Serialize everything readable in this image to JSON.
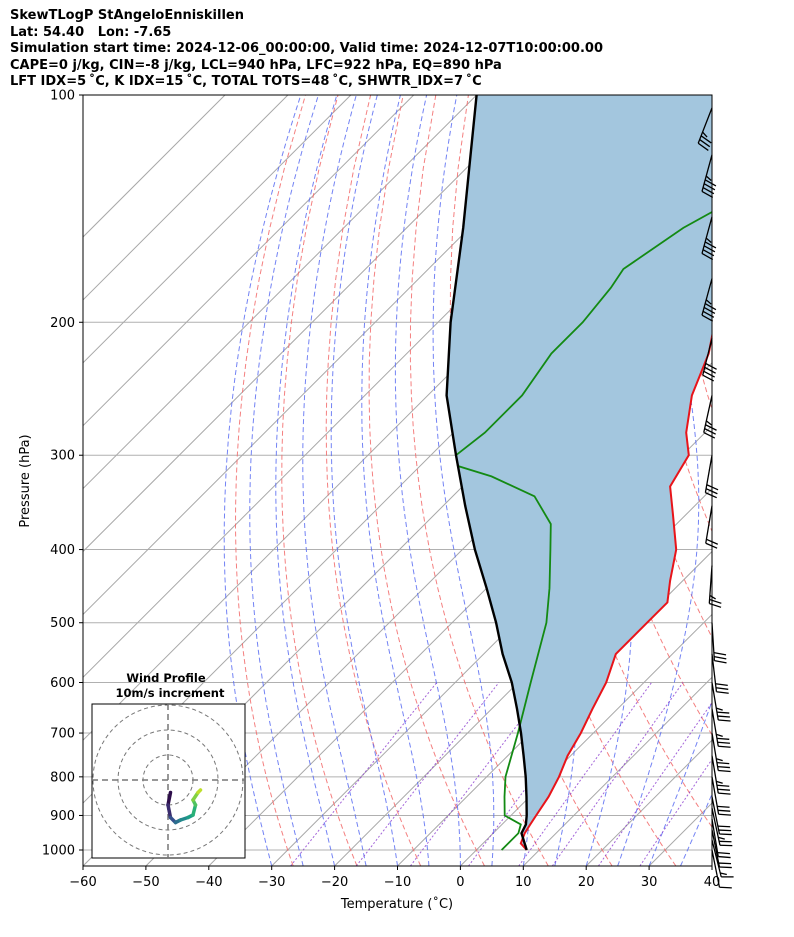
{
  "header": {
    "line1": "SkewTLogP StAngeloEnniskillen",
    "line2": "Lat: 54.40   Lon: -7.65",
    "line3": "Simulation start time: 2024-12-06_00:00:00, Valid time: 2024-12-07T10:00:00.00",
    "line4": "CAPE=0 j/kg, CIN=-8 j/kg, LCL=940 hPa, LFC=922 hPa, EQ=890 hPa",
    "line5": "LFT IDX=5 ˚C, K IDX=15 ˚C, TOTAL TOTS=48 ˚C, SHWTR_IDX=7 ˚C"
  },
  "chart_data": {
    "type": "line",
    "chart_kind": "skew-T log-P",
    "xlabel": "Temperature (˚C)",
    "ylabel": "Pressure (hPa)",
    "xlim": [
      -60,
      40
    ],
    "ylim": [
      1050,
      100
    ],
    "y_scale": "log",
    "x_ticks": [
      "−60",
      "−50",
      "−40",
      "−30",
      "−20",
      "−10",
      "0",
      "10",
      "20",
      "30",
      "40"
    ],
    "y_ticks": [
      "100",
      "200",
      "300",
      "400",
      "500",
      "600",
      "700",
      "800",
      "900",
      "1000"
    ],
    "grid": true,
    "colors": {
      "temperature": "#e8141a",
      "dewpoint": "#138a13",
      "parcel": "#000000",
      "cape_fill": "#a3c6de",
      "dry_adiabats": "#f26a6a",
      "moist_adiabats": "#5a6df2",
      "mixing_ratio": "#8c3fcf"
    },
    "series": [
      {
        "key": "temperature",
        "points": [
          [
            1000,
            8
          ],
          [
            980,
            6
          ],
          [
            950,
            5
          ],
          [
            925,
            4.5
          ],
          [
            900,
            4
          ],
          [
            850,
            3
          ],
          [
            800,
            1.5
          ],
          [
            750,
            -0.5
          ],
          [
            700,
            -2
          ],
          [
            650,
            -4
          ],
          [
            600,
            -6
          ],
          [
            550,
            -9
          ],
          [
            500,
            -9
          ],
          [
            470,
            -9
          ],
          [
            440,
            -12
          ],
          [
            400,
            -16
          ],
          [
            360,
            -22
          ],
          [
            330,
            -27
          ],
          [
            300,
            -29
          ],
          [
            280,
            -33
          ],
          [
            250,
            -38
          ],
          [
            220,
            -42
          ],
          [
            200,
            -46
          ],
          [
            180,
            -51
          ],
          [
            160,
            -54
          ],
          [
            140,
            -57
          ],
          [
            120,
            -61
          ],
          [
            100,
            -66
          ]
        ]
      },
      {
        "key": "dewpoint",
        "points": [
          [
            1000,
            4
          ],
          [
            950,
            4
          ],
          [
            925,
            3
          ],
          [
            900,
            -1
          ],
          [
            850,
            -4
          ],
          [
            800,
            -7
          ],
          [
            700,
            -12
          ],
          [
            600,
            -18
          ],
          [
            500,
            -25
          ],
          [
            450,
            -30
          ],
          [
            400,
            -36
          ],
          [
            370,
            -40
          ],
          [
            340,
            -47
          ],
          [
            320,
            -57
          ],
          [
            310,
            -64
          ],
          [
            300,
            -66
          ],
          [
            280,
            -65
          ],
          [
            250,
            -65
          ],
          [
            220,
            -67
          ],
          [
            200,
            -67
          ],
          [
            180,
            -68
          ],
          [
            170,
            -69
          ],
          [
            150,
            -66
          ],
          [
            130,
            -60
          ],
          [
            110,
            -54
          ],
          [
            100,
            -50
          ]
        ]
      },
      {
        "key": "parcel",
        "points": [
          [
            1000,
            8
          ],
          [
            950,
            4.5
          ],
          [
            925,
            3.8
          ],
          [
            900,
            2.5
          ],
          [
            850,
            -0.5
          ],
          [
            800,
            -3.8
          ],
          [
            750,
            -7.5
          ],
          [
            700,
            -11.5
          ],
          [
            650,
            -16
          ],
          [
            600,
            -21
          ],
          [
            550,
            -27
          ],
          [
            500,
            -33
          ],
          [
            450,
            -40
          ],
          [
            400,
            -48
          ],
          [
            350,
            -56.5
          ],
          [
            300,
            -66
          ],
          [
            250,
            -77
          ],
          [
            200,
            -88
          ],
          [
            150,
            -101
          ],
          [
            100,
            -120
          ]
        ]
      }
    ],
    "wind_barbs": {
      "pressures": [
        1000,
        970,
        940,
        910,
        880,
        850,
        800,
        750,
        700,
        650,
        600,
        550,
        500,
        420,
        350,
        300,
        250,
        210,
        175,
        145,
        120,
        104
      ],
      "u": [
        -1,
        -2,
        -2,
        -2,
        -3,
        -3,
        -3,
        -3,
        -3,
        -3,
        -3,
        -2,
        -1,
        1,
        2,
        3,
        4,
        5,
        6,
        6,
        6,
        7
      ],
      "v": [
        5,
        8,
        10,
        12,
        14,
        15,
        17,
        18,
        18,
        18,
        18,
        17,
        16,
        14,
        12,
        17,
        18,
        20,
        22,
        22,
        22,
        18
      ]
    },
    "wind_profile_inset": {
      "title": "Wind Profile",
      "subtitle": "10m/s increment",
      "rings": 3,
      "hodograph": [
        [
          1,
          -5
        ],
        [
          0,
          -10
        ],
        [
          1,
          -15
        ],
        [
          3,
          -17
        ],
        [
          5,
          -16
        ],
        [
          8,
          -15
        ],
        [
          10,
          -14
        ],
        [
          11,
          -10
        ],
        [
          10,
          -8
        ],
        [
          12,
          -5
        ],
        [
          13,
          -4
        ]
      ]
    }
  }
}
